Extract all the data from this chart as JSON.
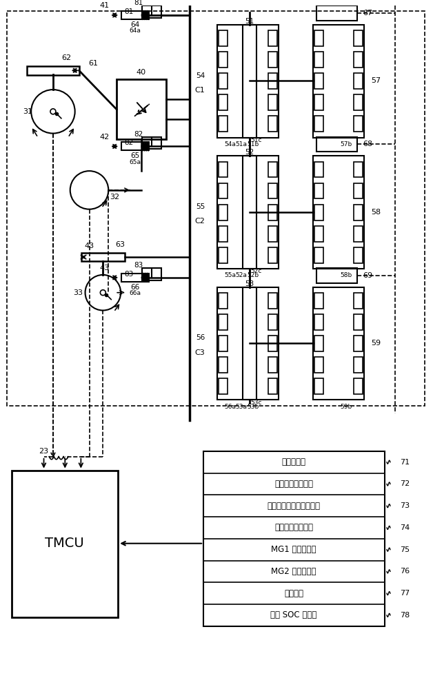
{
  "bg_color": "#ffffff",
  "sensor_labels": [
    "车速传感器",
    "加速器开度传感器",
    "变速器输出轴转速传感器",
    "发动机转速传感器",
    "MG1 转速传感器",
    "MG2 转速传感器",
    "断路开关",
    "电池 SOC 传感器"
  ],
  "sensor_numbers": [
    "71",
    "72",
    "73",
    "74",
    "75",
    "76",
    "77",
    "78"
  ]
}
